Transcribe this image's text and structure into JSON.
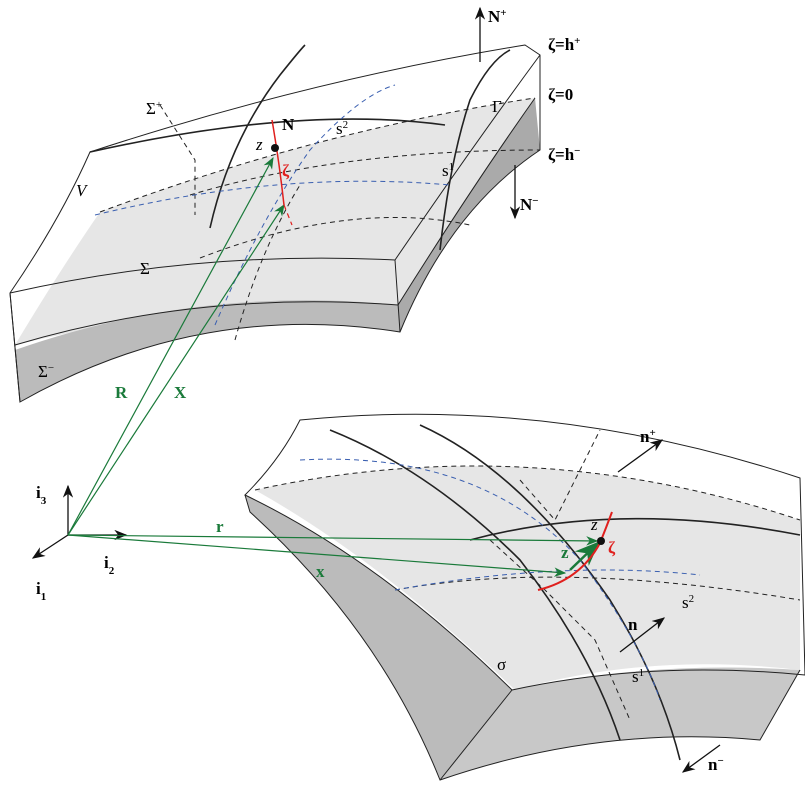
{
  "labels": [
    {
      "text": "N",
      "sup": "+"
    },
    {
      "text": "ζ=h",
      "sup": "+"
    },
    {
      "text": "ζ=0"
    },
    {
      "text": "ζ=h",
      "sup": "−"
    },
    {
      "text": "Σ",
      "sup": "+"
    },
    {
      "text": "N"
    },
    {
      "text": "z"
    },
    {
      "text": "s",
      "sup": "2"
    },
    {
      "text": "Γ"
    },
    {
      "text": "ζ"
    },
    {
      "text": "s",
      "sup": "1"
    },
    {
      "text": "V"
    },
    {
      "text": "N",
      "sup": "−"
    },
    {
      "text": "Σ"
    },
    {
      "text": "Σ",
      "sup": "−"
    },
    {
      "text": "R"
    },
    {
      "text": "X"
    },
    {
      "text": "n",
      "sup": "+"
    },
    {
      "text": "i",
      "sub": "3"
    },
    {
      "text": "r"
    },
    {
      "text": "z"
    },
    {
      "text": "z"
    },
    {
      "text": "ζ"
    },
    {
      "text": "i",
      "sub": "2"
    },
    {
      "text": "i",
      "sub": "1"
    },
    {
      "text": "x"
    },
    {
      "text": "n"
    },
    {
      "text": "s",
      "sup": "2"
    },
    {
      "text": "σ"
    },
    {
      "text": "s",
      "sup": "1"
    },
    {
      "text": "n",
      "sup": "−"
    }
  ]
}
